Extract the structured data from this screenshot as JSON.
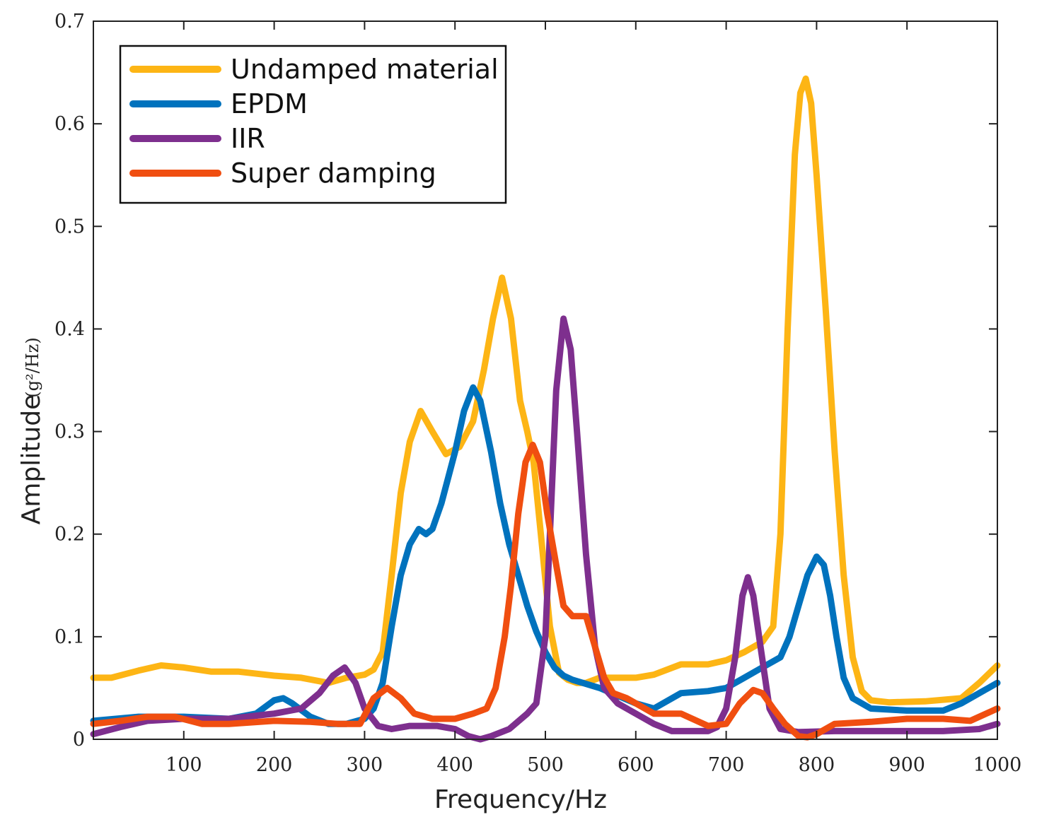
{
  "chart_data": {
    "type": "line",
    "xlabel": "Frequency/Hz",
    "ylabel": "Amplitude",
    "ylabel_unit": "(g²/Hz)",
    "xlim": [
      0,
      1000
    ],
    "ylim": [
      0,
      0.7
    ],
    "xticks": [
      100,
      200,
      300,
      400,
      500,
      600,
      700,
      800,
      900,
      1000
    ],
    "xtick_labels": [
      "100",
      "200",
      "300",
      "400",
      "500",
      "600",
      "700",
      "800",
      "900",
      "1000"
    ],
    "yticks": [
      0,
      0.1,
      0.2,
      0.3,
      0.4,
      0.5,
      0.6,
      0.7
    ],
    "ytick_labels": [
      "0",
      "0.1",
      "0.2",
      "0.3",
      "0.4",
      "0.5",
      "0.6",
      "0.7"
    ],
    "legend_position": "top-left",
    "grid": false,
    "series": [
      {
        "name": "Undamped material",
        "color": "#FDB515",
        "x": [
          0,
          20,
          50,
          75,
          100,
          130,
          160,
          200,
          230,
          260,
          280,
          300,
          310,
          320,
          330,
          340,
          350,
          362,
          375,
          390,
          405,
          420,
          432,
          442,
          452,
          462,
          472,
          480,
          487,
          495,
          505,
          515,
          525,
          535,
          545,
          560,
          600,
          620,
          650,
          680,
          700,
          720,
          740,
          752,
          760,
          768,
          776,
          782,
          788,
          794,
          800,
          810,
          820,
          830,
          840,
          850,
          860,
          880,
          920,
          960,
          980,
          1000
        ],
        "y": [
          0.06,
          0.06,
          0.067,
          0.072,
          0.07,
          0.066,
          0.066,
          0.062,
          0.06,
          0.055,
          0.06,
          0.063,
          0.068,
          0.085,
          0.16,
          0.24,
          0.29,
          0.32,
          0.3,
          0.278,
          0.285,
          0.31,
          0.36,
          0.41,
          0.45,
          0.41,
          0.33,
          0.3,
          0.27,
          0.2,
          0.11,
          0.065,
          0.058,
          0.055,
          0.055,
          0.06,
          0.06,
          0.063,
          0.073,
          0.073,
          0.077,
          0.085,
          0.095,
          0.11,
          0.2,
          0.4,
          0.57,
          0.63,
          0.644,
          0.62,
          0.55,
          0.42,
          0.28,
          0.16,
          0.08,
          0.047,
          0.038,
          0.036,
          0.037,
          0.04,
          0.055,
          0.072
        ]
      },
      {
        "name": "EPDM",
        "color": "#0072BD",
        "x": [
          0,
          50,
          100,
          150,
          180,
          200,
          210,
          220,
          240,
          260,
          280,
          300,
          310,
          320,
          330,
          340,
          350,
          360,
          368,
          375,
          385,
          400,
          410,
          420,
          428,
          440,
          450,
          460,
          470,
          480,
          490,
          500,
          510,
          520,
          530,
          560,
          600,
          620,
          650,
          680,
          700,
          720,
          740,
          760,
          770,
          780,
          790,
          800,
          808,
          815,
          822,
          830,
          840,
          860,
          900,
          940,
          960,
          980,
          1000
        ],
        "y": [
          0.018,
          0.022,
          0.022,
          0.02,
          0.025,
          0.038,
          0.04,
          0.035,
          0.022,
          0.015,
          0.015,
          0.02,
          0.03,
          0.055,
          0.11,
          0.16,
          0.19,
          0.205,
          0.2,
          0.205,
          0.23,
          0.28,
          0.32,
          0.343,
          0.33,
          0.28,
          0.23,
          0.19,
          0.16,
          0.13,
          0.105,
          0.085,
          0.07,
          0.062,
          0.058,
          0.05,
          0.035,
          0.03,
          0.045,
          0.047,
          0.05,
          0.06,
          0.07,
          0.08,
          0.1,
          0.13,
          0.16,
          0.178,
          0.17,
          0.14,
          0.1,
          0.06,
          0.04,
          0.03,
          0.028,
          0.028,
          0.035,
          0.045,
          0.055
        ]
      },
      {
        "name": "IIR",
        "color": "#7E2F8E",
        "x": [
          0,
          30,
          60,
          100,
          150,
          200,
          230,
          250,
          265,
          278,
          290,
          300,
          315,
          330,
          350,
          380,
          400,
          415,
          428,
          440,
          460,
          480,
          490,
          500,
          505,
          512,
          520,
          528,
          535,
          545,
          555,
          565,
          580,
          600,
          620,
          640,
          660,
          680,
          690,
          700,
          710,
          718,
          724,
          730,
          738,
          748,
          760,
          780,
          820,
          880,
          940,
          980,
          1000
        ],
        "y": [
          0.005,
          0.012,
          0.018,
          0.02,
          0.02,
          0.025,
          0.03,
          0.045,
          0.062,
          0.07,
          0.055,
          0.03,
          0.013,
          0.01,
          0.013,
          0.013,
          0.01,
          0.003,
          0.0,
          0.003,
          0.01,
          0.025,
          0.035,
          0.1,
          0.2,
          0.34,
          0.41,
          0.38,
          0.3,
          0.18,
          0.09,
          0.05,
          0.035,
          0.025,
          0.015,
          0.008,
          0.008,
          0.008,
          0.012,
          0.03,
          0.08,
          0.14,
          0.158,
          0.14,
          0.09,
          0.03,
          0.01,
          0.007,
          0.008,
          0.008,
          0.008,
          0.01,
          0.015
        ]
      },
      {
        "name": "Super damping",
        "color": "#F04E10",
        "x": [
          0,
          30,
          60,
          90,
          120,
          150,
          200,
          240,
          270,
          295,
          310,
          325,
          340,
          355,
          375,
          400,
          420,
          435,
          445,
          455,
          462,
          470,
          478,
          486,
          494,
          502,
          512,
          520,
          530,
          545,
          555,
          565,
          575,
          590,
          620,
          650,
          680,
          700,
          715,
          730,
          740,
          752,
          765,
          780,
          790,
          800,
          820,
          860,
          900,
          940,
          970,
          1000
        ],
        "y": [
          0.015,
          0.018,
          0.022,
          0.022,
          0.015,
          0.015,
          0.018,
          0.017,
          0.015,
          0.015,
          0.04,
          0.05,
          0.04,
          0.025,
          0.02,
          0.02,
          0.025,
          0.03,
          0.05,
          0.1,
          0.15,
          0.22,
          0.27,
          0.287,
          0.27,
          0.22,
          0.17,
          0.13,
          0.12,
          0.12,
          0.09,
          0.06,
          0.045,
          0.04,
          0.025,
          0.025,
          0.013,
          0.015,
          0.035,
          0.048,
          0.045,
          0.03,
          0.015,
          0.003,
          0.002,
          0.005,
          0.015,
          0.017,
          0.02,
          0.02,
          0.018,
          0.03
        ]
      }
    ]
  }
}
